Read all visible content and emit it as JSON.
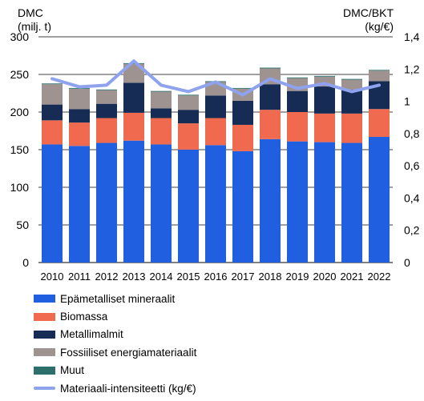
{
  "chart_data": {
    "type": "bar",
    "stacked": true,
    "left_axis": {
      "title_line1": "DMC",
      "title_line2": "(milj. t)",
      "ylim": [
        0,
        300
      ],
      "ticks": [
        0,
        50,
        100,
        150,
        200,
        250,
        300
      ],
      "tick_labels": [
        "0",
        "50",
        "100",
        "150",
        "200",
        "250",
        "300"
      ]
    },
    "right_axis": {
      "title_line1": "DMC/BKT",
      "title_line2": "(kg/€)",
      "ylim": [
        0,
        1.4
      ],
      "ticks": [
        0,
        0.2,
        0.4,
        0.6,
        0.8,
        1.0,
        1.2,
        1.4
      ],
      "tick_labels": [
        "0",
        "0,2",
        "0,4",
        "0,6",
        "0,8",
        "1",
        "1,2",
        "1,4"
      ]
    },
    "grid": true,
    "legend_position": "bottom",
    "categories": [
      "2010",
      "2011",
      "2012",
      "2013",
      "2014",
      "2015",
      "2016",
      "2017",
      "2018",
      "2019",
      "2020",
      "2021",
      "2022"
    ],
    "series": [
      {
        "name": "Epämetalliset mineraalit",
        "color": "#1f5fe0",
        "values": [
          157,
          155,
          159,
          162,
          157,
          150,
          156,
          148,
          164,
          161,
          160,
          159,
          167
        ]
      },
      {
        "name": "Biomassa",
        "color": "#f06a4f",
        "values": [
          32,
          31,
          33,
          37,
          35,
          35,
          36,
          35,
          39,
          39,
          38,
          39,
          37
        ]
      },
      {
        "name": "Metallimalmit",
        "color": "#172c55",
        "values": [
          21,
          18,
          19,
          40,
          13,
          18,
          30,
          32,
          34,
          28,
          36,
          32,
          37
        ]
      },
      {
        "name": "Fossiiliset energiamateriaalit",
        "color": "#9f9391",
        "values": [
          27,
          27,
          18,
          25,
          22,
          19,
          18,
          16,
          21,
          17,
          13,
          13,
          14
        ]
      },
      {
        "name": "Muut",
        "color": "#2c6f6b",
        "values": [
          1,
          1,
          1,
          1,
          1,
          1,
          1,
          1,
          1,
          1,
          1,
          1,
          1
        ]
      }
    ],
    "line_series": {
      "name": "Materiaali-intensiteetti  (kg/€)",
      "color": "#8fa2ee",
      "axis": "right",
      "values": [
        1.14,
        1.09,
        1.1,
        1.25,
        1.1,
        1.06,
        1.12,
        1.04,
        1.14,
        1.08,
        1.11,
        1.06,
        1.1
      ]
    }
  }
}
